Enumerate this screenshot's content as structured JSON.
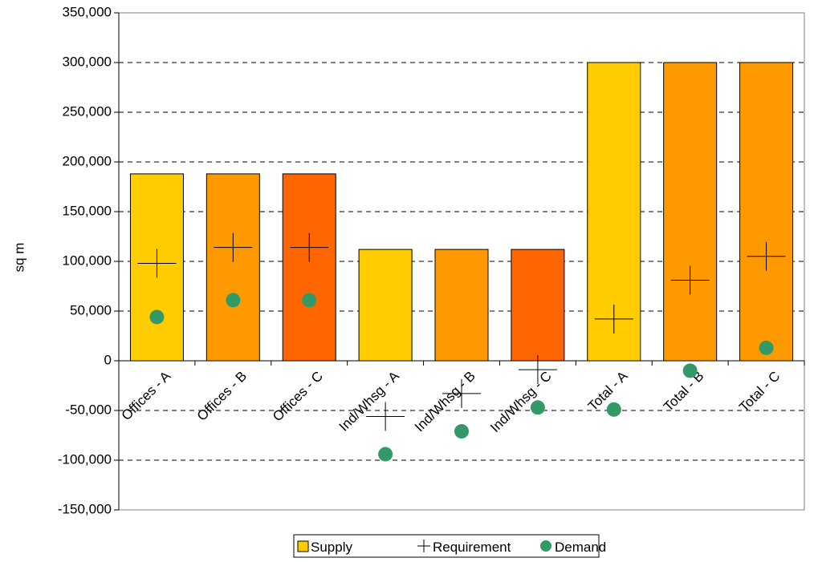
{
  "chart_data": {
    "type": "bar",
    "title": "",
    "xlabel": "",
    "ylabel": "sq m",
    "ylim": [
      -150000,
      350000
    ],
    "y_ticks": [
      350000,
      300000,
      250000,
      200000,
      150000,
      100000,
      50000,
      0,
      -50000,
      -100000,
      -150000
    ],
    "y_tick_labels": [
      "350,000",
      "300,000",
      "250,000",
      "200,000",
      "150,000",
      "100,000",
      "50,000",
      "0",
      "-50,000",
      "-100,000",
      "-150,000"
    ],
    "grid": "horizontal dashed",
    "legend_position": "bottom",
    "categories": [
      "Offices - A",
      "Offices - B",
      "Offices - C",
      "Ind/Whsg - A",
      "Ind/Whsg - B",
      "Ind/Whsg - C",
      "Total - A",
      "Total - B",
      "Total - C"
    ],
    "series": [
      {
        "name": "Supply",
        "kind": "bar",
        "values": [
          188000,
          188000,
          188000,
          112000,
          112000,
          112000,
          300000,
          300000,
          300000
        ],
        "colors": [
          "#FFCC00",
          "#FF9900",
          "#FF6600",
          "#FFCC00",
          "#FF9900",
          "#FF6600",
          "#FFCC00",
          "#FF9900",
          "#FF9900"
        ]
      },
      {
        "name": "Requirement",
        "kind": "marker-plus",
        "values": [
          98000,
          114000,
          114000,
          -56000,
          -33000,
          -9000,
          42000,
          81000,
          105000
        ]
      },
      {
        "name": "Demand",
        "kind": "marker-circle",
        "color": "#339966",
        "values": [
          44000,
          61000,
          61000,
          -94000,
          -71000,
          -47000,
          -49000,
          -10000,
          13000
        ]
      }
    ],
    "legend": [
      "Supply",
      "Requirement",
      "Demand"
    ]
  }
}
